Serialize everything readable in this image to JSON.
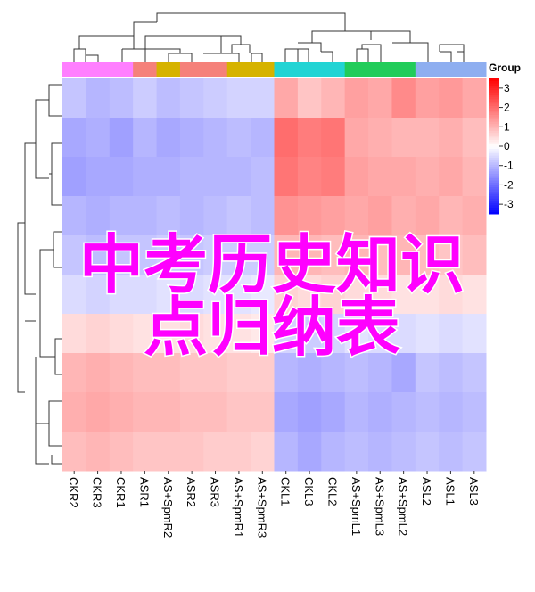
{
  "chart_data": {
    "type": "heatmap",
    "columns": [
      "CKR2",
      "CKR3",
      "CKR1",
      "ASR1",
      "AS+SpmR2",
      "ASR2",
      "ASR3",
      "AS+SpmR1",
      "AS+SpmR3",
      "CKL1",
      "CKL3",
      "CKL2",
      "AS+SpmL1",
      "AS+SpmL3",
      "AS+SpmL2",
      "ASL2",
      "ASL1",
      "ASL3"
    ],
    "column_colors": [
      "#ff7fff",
      "#ff7fff",
      "#ff7fff",
      "#f5817a",
      "#d6b300",
      "#f5817a",
      "#f5817a",
      "#d6b300",
      "#d6b300",
      "#22d4d4",
      "#22d4d4",
      "#22d4d4",
      "#22cc5a",
      "#22cc5a",
      "#22cc5a",
      "#8eaef0",
      "#8eaef0",
      "#8eaef0"
    ],
    "values": [
      [
        -0.8,
        -1.0,
        -0.9,
        -0.7,
        -0.9,
        -0.8,
        -0.7,
        -0.6,
        -0.6,
        1.2,
        0.8,
        1.0,
        1.3,
        1.2,
        1.6,
        1.3,
        1.4,
        1.2
      ],
      [
        -1.2,
        -1.1,
        -1.3,
        -1.0,
        -1.2,
        -1.1,
        -1.0,
        -0.9,
        -1.0,
        2.0,
        1.8,
        1.9,
        1.2,
        1.1,
        1.0,
        1.0,
        1.1,
        0.9
      ],
      [
        -1.3,
        -1.2,
        -1.2,
        -1.1,
        -1.1,
        -1.0,
        -1.0,
        -1.0,
        -0.9,
        1.9,
        1.7,
        1.8,
        1.3,
        1.2,
        1.2,
        1.1,
        1.2,
        1.0
      ],
      [
        -1.0,
        -1.1,
        -1.0,
        -1.0,
        -0.9,
        -1.0,
        -0.9,
        -0.8,
        -0.9,
        1.5,
        1.4,
        1.3,
        1.2,
        1.3,
        1.1,
        1.2,
        1.0,
        1.1
      ],
      [
        -0.8,
        -0.9,
        -0.8,
        -0.8,
        -0.7,
        -0.8,
        -0.7,
        -0.7,
        -0.7,
        1.0,
        1.0,
        0.9,
        1.0,
        0.9,
        1.0,
        0.9,
        0.8,
        0.9
      ],
      [
        -0.5,
        -0.6,
        -0.5,
        -0.5,
        -0.4,
        -0.5,
        -0.4,
        -0.4,
        -0.3,
        0.6,
        0.5,
        0.6,
        0.5,
        0.5,
        0.4,
        0.4,
        0.5,
        0.4
      ],
      [
        0.5,
        0.6,
        0.5,
        0.4,
        0.4,
        0.5,
        0.4,
        0.4,
        0.3,
        -0.6,
        -0.7,
        -0.6,
        -0.4,
        -0.5,
        -0.5,
        -0.4,
        -0.5,
        -0.4
      ],
      [
        1.0,
        1.1,
        1.0,
        0.9,
        0.9,
        0.8,
        0.8,
        0.7,
        0.7,
        -1.0,
        -1.1,
        -1.0,
        -0.9,
        -1.0,
        -1.2,
        -0.8,
        -0.9,
        -0.8
      ],
      [
        1.1,
        1.2,
        1.1,
        1.0,
        1.0,
        0.9,
        0.9,
        0.8,
        0.8,
        -1.2,
        -1.3,
        -1.2,
        -1.0,
        -1.1,
        -1.0,
        -0.9,
        -1.0,
        -0.9
      ],
      [
        0.9,
        1.0,
        0.9,
        0.8,
        0.8,
        0.8,
        0.7,
        0.7,
        0.6,
        -1.0,
        -1.2,
        -1.0,
        -0.9,
        -1.0,
        -0.9,
        -0.8,
        -0.9,
        -0.8
      ]
    ],
    "colors": [
      "#0000ff",
      "#ffffff",
      "#ff0000"
    ],
    "clim": [
      -3.5,
      3.5
    ],
    "cticks": [
      3,
      2,
      1,
      0,
      -1,
      -2,
      -3
    ],
    "legend_title": "Group",
    "overlay_text": [
      "中考历史知识",
      "点归纳表"
    ]
  }
}
